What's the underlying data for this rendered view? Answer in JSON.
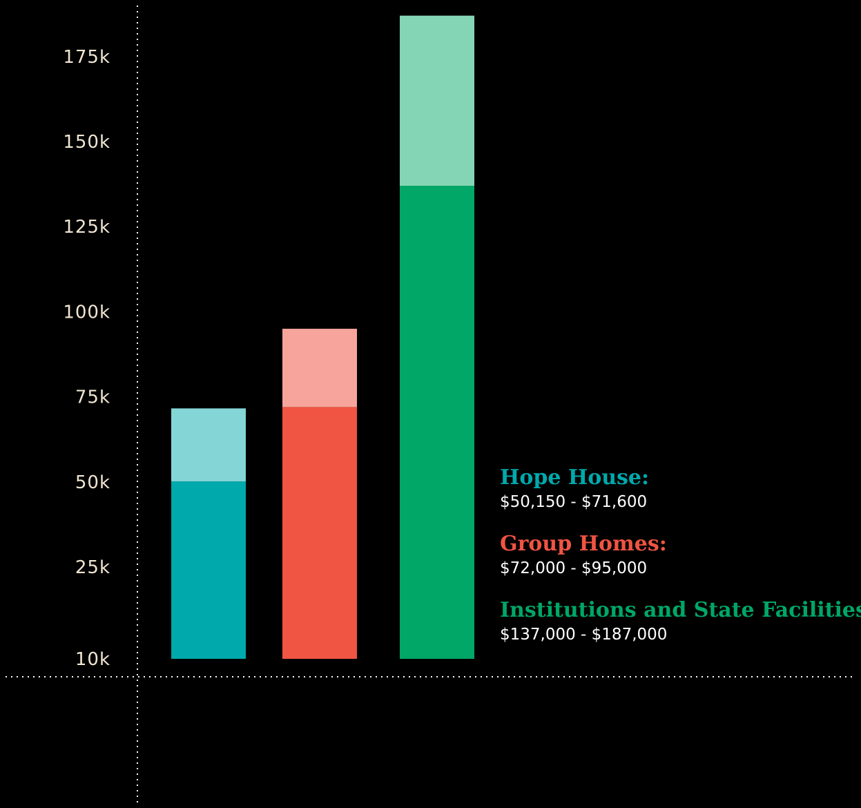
{
  "chart_data": {
    "type": "bar",
    "title": "",
    "xlabel": "",
    "ylabel": "",
    "ylim": [
      10000,
      190000
    ],
    "y_ticks": [
      {
        "value": 10000,
        "label": "10k"
      },
      {
        "value": 25000,
        "label": "25k"
      },
      {
        "value": 50000,
        "label": "50k"
      },
      {
        "value": 75000,
        "label": "75k"
      },
      {
        "value": 100000,
        "label": "100k"
      },
      {
        "value": 125000,
        "label": "125k"
      },
      {
        "value": 150000,
        "label": "150k"
      },
      {
        "value": 175000,
        "label": "175k"
      }
    ],
    "grid": false,
    "legend_position": "right",
    "categories": [
      "Hope House",
      "Group Homes",
      "Institutions and State Facilities"
    ],
    "series": [
      {
        "name": "Hope House",
        "low": 50150,
        "high": 71600,
        "color_low": "#00a9ac",
        "color_high": "#84d5d6"
      },
      {
        "name": "Group Homes",
        "low": 72000,
        "high": 95000,
        "color_low": "#f05442",
        "color_high": "#f7a59c"
      },
      {
        "name": "Institutions and State Facilities",
        "low": 137000,
        "high": 187000,
        "color_low": "#00a766",
        "color_high": "#84d5b5"
      }
    ]
  },
  "legend": {
    "entries": [
      {
        "name": "Hope House:",
        "range": "$50,150 - $71,600",
        "color": "#00a9ac"
      },
      {
        "name": "Group Homes:",
        "range": "$72,000 - $95,000",
        "color": "#f05442"
      },
      {
        "name": "Institutions and State Facilities:",
        "range": "$137,000 - $187,000",
        "color": "#00a766"
      }
    ]
  }
}
